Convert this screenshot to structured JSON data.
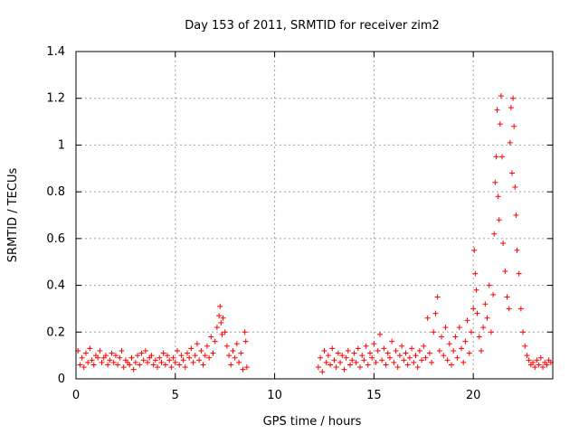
{
  "chart_data": {
    "type": "scatter",
    "title": "Day 153 of 2011, SRMTID for receiver zim2",
    "xlabel": "GPS time / hours",
    "ylabel": "SRMTID / TECUs",
    "xlim": [
      0,
      24
    ],
    "ylim": [
      0,
      1.4
    ],
    "xticks": [
      0,
      5,
      10,
      15,
      20
    ],
    "xtick_labels": [
      "0",
      "5",
      "10",
      "15",
      "20"
    ],
    "yticks": [
      0,
      0.2,
      0.4,
      0.6,
      0.8,
      1.0,
      1.2,
      1.4
    ],
    "ytick_labels": [
      "0",
      "0.2",
      "0.4",
      "0.6",
      "0.8",
      "1",
      "1.2",
      "1.4"
    ],
    "grid": true,
    "marker": "+",
    "marker_color": "#ff0000",
    "series": [
      {
        "name": "SRMTID",
        "points": [
          [
            0.1,
            0.12
          ],
          [
            0.2,
            0.06
          ],
          [
            0.3,
            0.09
          ],
          [
            0.4,
            0.05
          ],
          [
            0.5,
            0.11
          ],
          [
            0.6,
            0.07
          ],
          [
            0.7,
            0.13
          ],
          [
            0.8,
            0.08
          ],
          [
            0.9,
            0.06
          ],
          [
            1.0,
            0.1
          ],
          [
            1.1,
            0.09
          ],
          [
            1.2,
            0.12
          ],
          [
            1.3,
            0.07
          ],
          [
            1.4,
            0.09
          ],
          [
            1.5,
            0.1
          ],
          [
            1.6,
            0.06
          ],
          [
            1.7,
            0.08
          ],
          [
            1.8,
            0.11
          ],
          [
            1.9,
            0.07
          ],
          [
            2.0,
            0.1
          ],
          [
            2.1,
            0.06
          ],
          [
            2.2,
            0.09
          ],
          [
            2.3,
            0.12
          ],
          [
            2.4,
            0.05
          ],
          [
            2.5,
            0.08
          ],
          [
            2.6,
            0.07
          ],
          [
            2.7,
            0.06
          ],
          [
            2.8,
            0.09
          ],
          [
            2.9,
            0.04
          ],
          [
            3.0,
            0.07
          ],
          [
            3.1,
            0.1
          ],
          [
            3.2,
            0.06
          ],
          [
            3.3,
            0.11
          ],
          [
            3.4,
            0.08
          ],
          [
            3.5,
            0.12
          ],
          [
            3.6,
            0.07
          ],
          [
            3.7,
            0.09
          ],
          [
            3.8,
            0.1
          ],
          [
            3.9,
            0.06
          ],
          [
            4.0,
            0.08
          ],
          [
            4.1,
            0.05
          ],
          [
            4.2,
            0.09
          ],
          [
            4.3,
            0.07
          ],
          [
            4.4,
            0.11
          ],
          [
            4.5,
            0.06
          ],
          [
            4.6,
            0.1
          ],
          [
            4.7,
            0.08
          ],
          [
            4.8,
            0.05
          ],
          [
            4.9,
            0.09
          ],
          [
            5.0,
            0.07
          ],
          [
            5.1,
            0.12
          ],
          [
            5.2,
            0.06
          ],
          [
            5.3,
            0.1
          ],
          [
            5.4,
            0.08
          ],
          [
            5.5,
            0.05
          ],
          [
            5.6,
            0.11
          ],
          [
            5.7,
            0.09
          ],
          [
            5.8,
            0.13
          ],
          [
            5.9,
            0.07
          ],
          [
            6.0,
            0.1
          ],
          [
            6.1,
            0.15
          ],
          [
            6.2,
            0.08
          ],
          [
            6.3,
            0.12
          ],
          [
            6.4,
            0.06
          ],
          [
            6.5,
            0.1
          ],
          [
            6.6,
            0.14
          ],
          [
            6.7,
            0.09
          ],
          [
            6.8,
            0.18
          ],
          [
            6.9,
            0.11
          ],
          [
            7.0,
            0.16
          ],
          [
            7.1,
            0.22
          ],
          [
            7.2,
            0.27
          ],
          [
            7.25,
            0.31
          ],
          [
            7.3,
            0.24
          ],
          [
            7.35,
            0.19
          ],
          [
            7.4,
            0.26
          ],
          [
            7.5,
            0.2
          ],
          [
            7.6,
            0.14
          ],
          [
            7.7,
            0.1
          ],
          [
            7.8,
            0.06
          ],
          [
            7.9,
            0.12
          ],
          [
            8.0,
            0.09
          ],
          [
            8.1,
            0.15
          ],
          [
            8.2,
            0.07
          ],
          [
            8.3,
            0.11
          ],
          [
            8.4,
            0.04
          ],
          [
            8.5,
            0.2
          ],
          [
            8.55,
            0.16
          ],
          [
            8.6,
            0.05
          ],
          [
            12.2,
            0.05
          ],
          [
            12.3,
            0.09
          ],
          [
            12.4,
            0.03
          ],
          [
            12.5,
            0.12
          ],
          [
            12.6,
            0.07
          ],
          [
            12.7,
            0.1
          ],
          [
            12.8,
            0.06
          ],
          [
            12.9,
            0.13
          ],
          [
            13.0,
            0.08
          ],
          [
            13.1,
            0.05
          ],
          [
            13.2,
            0.11
          ],
          [
            13.3,
            0.07
          ],
          [
            13.4,
            0.1
          ],
          [
            13.5,
            0.04
          ],
          [
            13.6,
            0.09
          ],
          [
            13.7,
            0.12
          ],
          [
            13.8,
            0.06
          ],
          [
            13.9,
            0.08
          ],
          [
            14.0,
            0.11
          ],
          [
            14.1,
            0.07
          ],
          [
            14.2,
            0.13
          ],
          [
            14.3,
            0.05
          ],
          [
            14.4,
            0.1
          ],
          [
            14.5,
            0.08
          ],
          [
            14.6,
            0.14
          ],
          [
            14.7,
            0.06
          ],
          [
            14.8,
            0.11
          ],
          [
            14.9,
            0.09
          ],
          [
            15.0,
            0.15
          ],
          [
            15.1,
            0.07
          ],
          [
            15.2,
            0.12
          ],
          [
            15.3,
            0.19
          ],
          [
            15.4,
            0.08
          ],
          [
            15.5,
            0.13
          ],
          [
            15.6,
            0.06
          ],
          [
            15.7,
            0.11
          ],
          [
            15.8,
            0.09
          ],
          [
            15.9,
            0.16
          ],
          [
            16.0,
            0.07
          ],
          [
            16.1,
            0.12
          ],
          [
            16.2,
            0.05
          ],
          [
            16.3,
            0.1
          ],
          [
            16.4,
            0.14
          ],
          [
            16.5,
            0.08
          ],
          [
            16.6,
            0.11
          ],
          [
            16.7,
            0.06
          ],
          [
            16.8,
            0.09
          ],
          [
            16.9,
            0.13
          ],
          [
            17.0,
            0.07
          ],
          [
            17.1,
            0.1
          ],
          [
            17.2,
            0.05
          ],
          [
            17.3,
            0.12
          ],
          [
            17.4,
            0.08
          ],
          [
            17.5,
            0.14
          ],
          [
            17.6,
            0.09
          ],
          [
            17.7,
            0.26
          ],
          [
            17.8,
            0.11
          ],
          [
            17.9,
            0.07
          ],
          [
            18.0,
            0.2
          ],
          [
            18.1,
            0.28
          ],
          [
            18.2,
            0.35
          ],
          [
            18.3,
            0.12
          ],
          [
            18.4,
            0.18
          ],
          [
            18.5,
            0.1
          ],
          [
            18.6,
            0.22
          ],
          [
            18.7,
            0.08
          ],
          [
            18.8,
            0.15
          ],
          [
            18.9,
            0.06
          ],
          [
            19.0,
            0.12
          ],
          [
            19.1,
            0.18
          ],
          [
            19.2,
            0.09
          ],
          [
            19.3,
            0.22
          ],
          [
            19.4,
            0.13
          ],
          [
            19.5,
            0.07
          ],
          [
            19.6,
            0.16
          ],
          [
            19.7,
            0.25
          ],
          [
            19.8,
            0.11
          ],
          [
            19.9,
            0.2
          ],
          [
            20.0,
            0.3
          ],
          [
            20.05,
            0.55
          ],
          [
            20.1,
            0.45
          ],
          [
            20.15,
            0.38
          ],
          [
            20.2,
            0.28
          ],
          [
            20.3,
            0.18
          ],
          [
            20.4,
            0.12
          ],
          [
            20.5,
            0.22
          ],
          [
            20.6,
            0.32
          ],
          [
            20.7,
            0.26
          ],
          [
            20.8,
            0.4
          ],
          [
            20.9,
            0.2
          ],
          [
            21.0,
            0.36
          ],
          [
            21.05,
            0.62
          ],
          [
            21.1,
            0.84
          ],
          [
            21.15,
            0.95
          ],
          [
            21.2,
            1.15
          ],
          [
            21.25,
            0.78
          ],
          [
            21.3,
            0.68
          ],
          [
            21.35,
            1.09
          ],
          [
            21.4,
            1.21
          ],
          [
            21.45,
            0.95
          ],
          [
            21.5,
            0.58
          ],
          [
            21.6,
            0.46
          ],
          [
            21.7,
            0.35
          ],
          [
            21.8,
            0.3
          ],
          [
            21.85,
            1.01
          ],
          [
            21.9,
            1.16
          ],
          [
            21.95,
            0.88
          ],
          [
            22.0,
            1.2
          ],
          [
            22.05,
            1.08
          ],
          [
            22.1,
            0.82
          ],
          [
            22.15,
            0.7
          ],
          [
            22.2,
            0.55
          ],
          [
            22.3,
            0.45
          ],
          [
            22.4,
            0.3
          ],
          [
            22.5,
            0.2
          ],
          [
            22.6,
            0.14
          ],
          [
            22.7,
            0.1
          ],
          [
            22.8,
            0.08
          ],
          [
            22.9,
            0.06
          ],
          [
            23.0,
            0.07
          ],
          [
            23.1,
            0.05
          ],
          [
            23.2,
            0.08
          ],
          [
            23.3,
            0.06
          ],
          [
            23.4,
            0.09
          ],
          [
            23.5,
            0.05
          ],
          [
            23.6,
            0.07
          ],
          [
            23.7,
            0.06
          ],
          [
            23.8,
            0.08
          ],
          [
            23.9,
            0.07
          ]
        ]
      }
    ]
  }
}
